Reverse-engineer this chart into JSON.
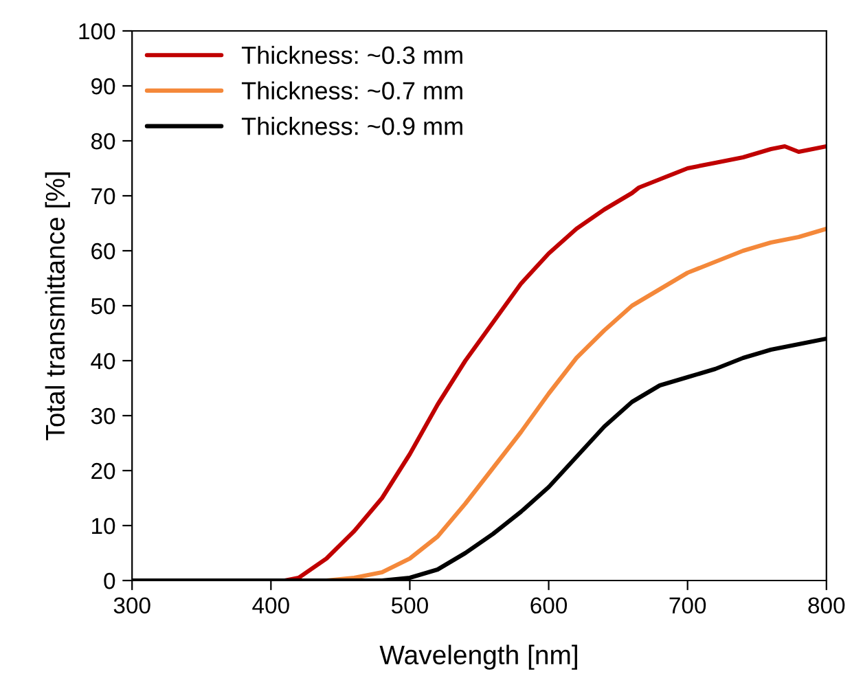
{
  "chart_data": {
    "type": "line",
    "xlabel": "Wavelength [nm]",
    "ylabel": "Total transmittance [%]",
    "xlim": [
      300,
      800
    ],
    "xticks": [
      300,
      400,
      500,
      600,
      700,
      800
    ],
    "ylim": [
      0,
      100
    ],
    "yticks": [
      0,
      10,
      20,
      30,
      40,
      50,
      60,
      70,
      80,
      90,
      100
    ],
    "grid": false,
    "legend": "top left",
    "marker": "none",
    "line_style": "solid",
    "series": [
      {
        "name": "Thickness: ~0.3 mm",
        "color": "#c00000",
        "x": [
          400,
          410,
          420,
          440,
          460,
          480,
          500,
          520,
          540,
          560,
          580,
          600,
          620,
          640,
          660,
          665,
          680,
          700,
          720,
          740,
          760,
          770,
          780,
          790,
          800
        ],
        "values": [
          0,
          0,
          0.5,
          4,
          9,
          15,
          23,
          32,
          40,
          47,
          54,
          59.5,
          64,
          67.5,
          70.5,
          71.5,
          73,
          75,
          76,
          77,
          78.5,
          79,
          78,
          78.5,
          79
        ]
      },
      {
        "name": "Thickness: ~0.7 mm",
        "color": "#f4883a",
        "x": [
          300,
          350,
          400,
          440,
          460,
          480,
          500,
          520,
          540,
          560,
          580,
          600,
          620,
          640,
          660,
          680,
          700,
          720,
          740,
          760,
          780,
          800
        ],
        "values": [
          0,
          0,
          0,
          0,
          0.5,
          1.5,
          4,
          8,
          14,
          20.5,
          27,
          34,
          40.5,
          45.5,
          50,
          53,
          56,
          58,
          60,
          61.5,
          62.5,
          64
        ]
      },
      {
        "name": "Thickness: ~0.9 mm",
        "color": "#000000",
        "x": [
          300,
          350,
          400,
          450,
          480,
          500,
          520,
          540,
          560,
          580,
          600,
          620,
          640,
          660,
          680,
          700,
          720,
          740,
          760,
          780,
          800
        ],
        "values": [
          0,
          0,
          0,
          0,
          0,
          0.5,
          2,
          5,
          8.5,
          12.5,
          17,
          22.5,
          28,
          32.5,
          35.5,
          37,
          38.5,
          40.5,
          42,
          43,
          44
        ]
      }
    ]
  }
}
